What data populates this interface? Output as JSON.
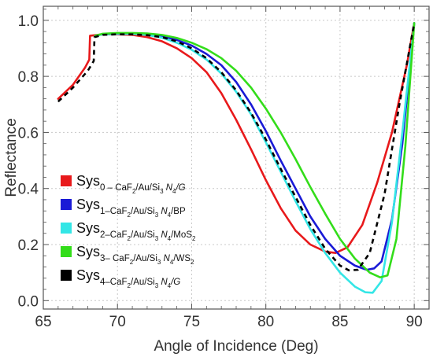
{
  "chart_data": {
    "type": "line",
    "xlabel": "Angle of Incidence (Deg)",
    "ylabel": "Reflectance",
    "xlim": [
      65,
      91
    ],
    "ylim": [
      -0.03,
      1.05
    ],
    "xticks": [
      65,
      70,
      75,
      80,
      85,
      90
    ],
    "yticks": [
      0.0,
      0.2,
      0.4,
      0.6,
      0.8,
      1.0
    ],
    "xtick_labels": [
      "65",
      "70",
      "75",
      "80",
      "85",
      "90"
    ],
    "ytick_labels": [
      "0.0",
      "0.2",
      "0.4",
      "0.6",
      "0.8",
      "1.0"
    ],
    "grid": true,
    "legend_position": "lower-left",
    "series": [
      {
        "legend": [
          {
            "t": "Sys",
            "s": "main"
          },
          {
            "t": "0 – CaF",
            "s": "sub"
          },
          {
            "t": "2",
            "s": "subsub"
          },
          {
            "t": "/Au/Si",
            "s": "sub"
          },
          {
            "t": "3",
            "s": "subsub"
          },
          {
            "t": " N",
            "s": "sub",
            "italic": true
          },
          {
            "t": "4",
            "s": "subsub"
          },
          {
            "t": "/G",
            "s": "sub",
            "italic": true
          }
        ],
        "color": "#e8191b",
        "dash": "solid",
        "x": [
          66,
          67,
          67.8,
          68.1,
          68.15,
          69,
          70,
          71,
          72,
          73,
          74,
          75,
          76,
          77,
          78,
          79,
          80,
          81,
          82,
          83,
          84,
          84.7,
          85.5,
          86.5,
          87.5,
          88.5,
          89.5,
          90
        ],
        "y": [
          0.72,
          0.77,
          0.83,
          0.86,
          0.945,
          0.95,
          0.95,
          0.948,
          0.94,
          0.925,
          0.9,
          0.865,
          0.815,
          0.74,
          0.645,
          0.54,
          0.43,
          0.33,
          0.25,
          0.2,
          0.175,
          0.17,
          0.19,
          0.27,
          0.42,
          0.6,
          0.84,
          0.99
        ]
      },
      {
        "legend": [
          {
            "t": "Sys",
            "s": "main"
          },
          {
            "t": "1–CaF",
            "s": "sub"
          },
          {
            "t": "2",
            "s": "subsub"
          },
          {
            "t": "/Au/Si",
            "s": "sub"
          },
          {
            "t": "3",
            "s": "subsub"
          },
          {
            "t": " N",
            "s": "sub",
            "italic": true
          },
          {
            "t": "4",
            "s": "subsub"
          },
          {
            "t": "/BP",
            "s": "sub"
          }
        ],
        "color": "#1a1ad6",
        "dash": "solid",
        "x": [
          68.5,
          69,
          70,
          71,
          72,
          73,
          74,
          75,
          76,
          77,
          78,
          79,
          80,
          81,
          82,
          83,
          84,
          85,
          86,
          86.8,
          87.3,
          87.8,
          88.5,
          89.2,
          90
        ],
        "y": [
          0.945,
          0.95,
          0.952,
          0.952,
          0.95,
          0.943,
          0.93,
          0.91,
          0.88,
          0.84,
          0.78,
          0.7,
          0.605,
          0.5,
          0.4,
          0.3,
          0.22,
          0.16,
          0.125,
          0.11,
          0.115,
          0.14,
          0.29,
          0.56,
          0.99
        ]
      },
      {
        "legend": [
          {
            "t": "Sys",
            "s": "main"
          },
          {
            "t": "2–CaF",
            "s": "sub"
          },
          {
            "t": "2",
            "s": "subsub"
          },
          {
            "t": "/Au/Si",
            "s": "sub"
          },
          {
            "t": "3",
            "s": "subsub"
          },
          {
            "t": " N",
            "s": "sub",
            "italic": true
          },
          {
            "t": "4",
            "s": "subsub"
          },
          {
            "t": "/MoS",
            "s": "sub"
          },
          {
            "t": "2",
            "s": "subsub"
          }
        ],
        "color": "#33e6e6",
        "dash": "solid",
        "x": [
          68.5,
          69,
          70,
          71,
          72,
          73,
          74,
          75,
          76,
          77,
          78,
          79,
          80,
          81,
          82,
          83,
          84,
          85,
          86,
          86.7,
          87.2,
          87.8,
          88.5,
          89.2,
          90
        ],
        "y": [
          0.945,
          0.95,
          0.952,
          0.952,
          0.948,
          0.938,
          0.92,
          0.895,
          0.86,
          0.81,
          0.745,
          0.665,
          0.565,
          0.46,
          0.355,
          0.255,
          0.17,
          0.1,
          0.05,
          0.03,
          0.028,
          0.07,
          0.28,
          0.6,
          0.99
        ]
      },
      {
        "legend": [
          {
            "t": "Sys",
            "s": "main"
          },
          {
            "t": "3– CaF",
            "s": "sub"
          },
          {
            "t": "2",
            "s": "subsub"
          },
          {
            "t": "/Au/Si",
            "s": "sub"
          },
          {
            "t": "3",
            "s": "subsub"
          },
          {
            "t": " N",
            "s": "sub",
            "italic": true
          },
          {
            "t": "4",
            "s": "subsub"
          },
          {
            "t": "/WS",
            "s": "sub"
          },
          {
            "t": "2",
            "s": "subsub"
          }
        ],
        "color": "#33dd1a",
        "dash": "solid",
        "x": [
          68.5,
          69,
          70,
          71,
          72,
          73,
          74,
          75,
          76,
          77,
          78,
          79,
          80,
          81,
          82,
          83,
          84,
          85,
          86,
          87,
          87.7,
          88.2,
          88.8,
          89.4,
          90
        ],
        "y": [
          0.945,
          0.952,
          0.955,
          0.955,
          0.953,
          0.948,
          0.937,
          0.92,
          0.897,
          0.865,
          0.82,
          0.76,
          0.685,
          0.6,
          0.505,
          0.405,
          0.31,
          0.22,
          0.15,
          0.1,
          0.083,
          0.09,
          0.22,
          0.55,
          0.99
        ]
      },
      {
        "legend": [
          {
            "t": "Sys",
            "s": "main"
          },
          {
            "t": "4–CaF",
            "s": "sub"
          },
          {
            "t": "2",
            "s": "subsub"
          },
          {
            "t": "/Au/Si",
            "s": "sub"
          },
          {
            "t": "3",
            "s": "subsub"
          },
          {
            "t": " N",
            "s": "sub",
            "italic": true
          },
          {
            "t": "4",
            "s": "subsub"
          },
          {
            "t": "/G",
            "s": "sub",
            "italic": true
          }
        ],
        "color": "#000000",
        "dash": "dashed",
        "x": [
          66,
          67,
          68,
          68.4,
          68.45,
          69,
          70,
          71,
          72,
          73,
          74,
          75,
          76,
          77,
          78,
          79,
          80,
          81,
          82,
          83,
          84,
          85,
          85.6,
          86.2,
          87,
          88,
          89,
          90
        ],
        "y": [
          0.71,
          0.76,
          0.82,
          0.855,
          0.94,
          0.948,
          0.95,
          0.95,
          0.947,
          0.94,
          0.925,
          0.9,
          0.865,
          0.815,
          0.75,
          0.67,
          0.575,
          0.47,
          0.37,
          0.27,
          0.185,
          0.125,
          0.108,
          0.11,
          0.17,
          0.38,
          0.7,
          0.99
        ]
      }
    ]
  }
}
